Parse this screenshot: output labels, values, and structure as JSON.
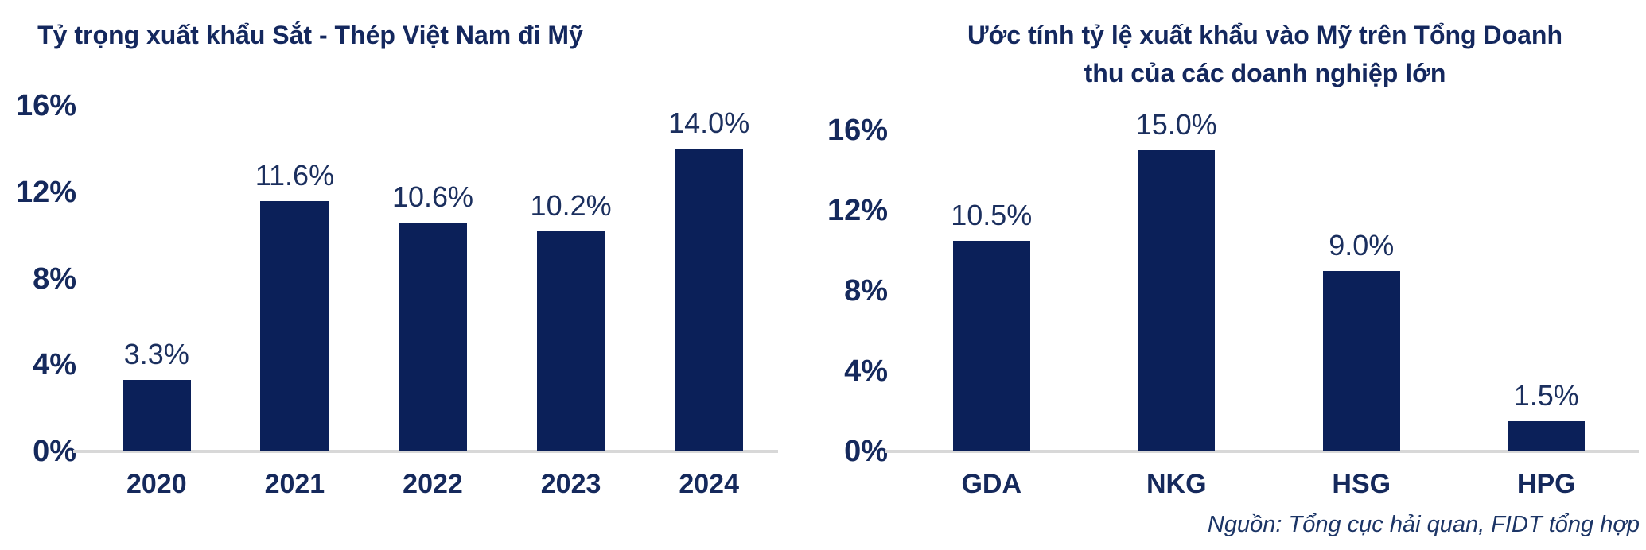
{
  "page": {
    "background": "#ffffff"
  },
  "colors": {
    "bar": "#0b2059",
    "title": "#14285e",
    "axis_label": "#15295c",
    "data_label": "#1b2f5e",
    "baseline": "#d8d8d8",
    "source": "#1c3566"
  },
  "source_note": "Nguồn: Tổng cục hải quan, FIDT tổng hợp",
  "chart_data": [
    {
      "type": "bar",
      "title": "Tỷ trọng xuất khẩu Sắt - Thép Việt Nam đi Mỹ",
      "categories": [
        "2020",
        "2021",
        "2022",
        "2023",
        "2024"
      ],
      "values": [
        3.3,
        11.6,
        10.6,
        10.2,
        14.0
      ],
      "data_labels": [
        "3.3%",
        "11.6%",
        "10.6%",
        "10.2%",
        "14.0%"
      ],
      "xlabel": "",
      "ylabel": "",
      "ylim": [
        0,
        16
      ],
      "yticks": [
        0,
        4,
        8,
        12,
        16
      ],
      "ytick_labels": [
        "0%",
        "4%",
        "8%",
        "12%",
        "16%"
      ],
      "grid": false,
      "legend": "none",
      "bar_color": "#0b2059"
    },
    {
      "type": "bar",
      "title": "Ước tính tỷ lệ xuất khẩu vào Mỹ trên Tổng Doanh thu của các doanh nghiệp lớn",
      "categories": [
        "GDA",
        "NKG",
        "HSG",
        "HPG"
      ],
      "values": [
        10.5,
        15.0,
        9.0,
        1.5
      ],
      "data_labels": [
        "10.5%",
        "15.0%",
        "9.0%",
        "1.5%"
      ],
      "xlabel": "",
      "ylabel": "",
      "ylim": [
        0,
        16
      ],
      "yticks": [
        0,
        4,
        8,
        12,
        16
      ],
      "ytick_labels": [
        "0%",
        "4%",
        "8%",
        "12%",
        "16%"
      ],
      "grid": false,
      "legend": "none",
      "bar_color": "#0b2059"
    }
  ]
}
